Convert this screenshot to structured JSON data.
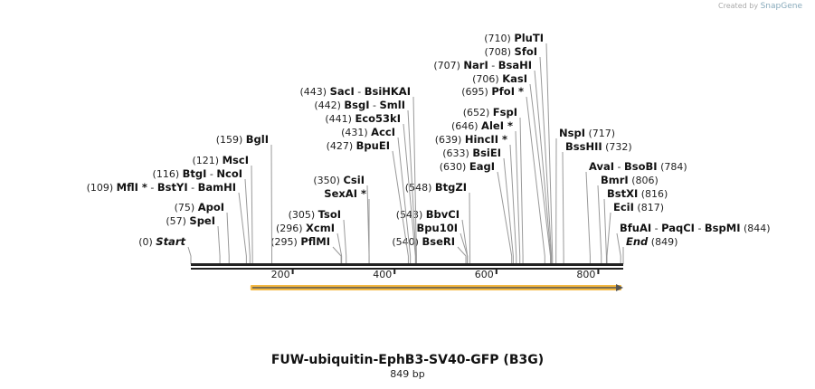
{
  "credit": {
    "prefix": "Created by",
    "brand": "SnapGene"
  },
  "title": "FUW-ubiquitin-EphB3-SV40-GFP (B3G)",
  "length_label": "849 bp",
  "length": 849,
  "ticks": [
    "200",
    "400",
    "600",
    "800"
  ],
  "feature": {
    "start": 117,
    "end": 849,
    "color": "#f5b942"
  },
  "sites": [
    {
      "pos": "(710)",
      "names": [
        "PluTI"
      ],
      "bp": 710,
      "side": "L"
    },
    {
      "pos": "(708)",
      "names": [
        "SfoI"
      ],
      "bp": 708,
      "side": "L"
    },
    {
      "pos": "(707)",
      "names": [
        "NarI",
        "BsaHI"
      ],
      "bp": 707,
      "side": "L"
    },
    {
      "pos": "(706)",
      "names": [
        "KasI"
      ],
      "bp": 706,
      "side": "L"
    },
    {
      "pos": "(695)",
      "names": [
        "PfoI *"
      ],
      "bp": 695,
      "side": "L"
    },
    {
      "pos": "(652)",
      "names": [
        "FspI"
      ],
      "bp": 652,
      "side": "L"
    },
    {
      "pos": "(646)",
      "names": [
        "AleI *"
      ],
      "bp": 646,
      "side": "L"
    },
    {
      "pos": "(639)",
      "names": [
        "HincII *"
      ],
      "bp": 639,
      "side": "L"
    },
    {
      "pos": "(633)",
      "names": [
        "BsiEI"
      ],
      "bp": 633,
      "side": "L"
    },
    {
      "pos": "(630)",
      "names": [
        "EagI"
      ],
      "bp": 630,
      "side": "L"
    },
    {
      "pos": "(548)",
      "names": [
        "BtgZI"
      ],
      "bp": 548,
      "side": "L"
    },
    {
      "pos": "(543)",
      "names": [
        "BbvCI"
      ],
      "bp": 543,
      "side": "L"
    },
    {
      "pos": "",
      "names": [
        "Bpu10I"
      ],
      "bp": 543,
      "side": "L"
    },
    {
      "pos": "(540)",
      "names": [
        "BseRI"
      ],
      "bp": 540,
      "side": "L"
    },
    {
      "pos": "(443)",
      "names": [
        "SacI",
        "BsiHKAI"
      ],
      "bp": 443,
      "side": "L"
    },
    {
      "pos": "(442)",
      "names": [
        "BsgI",
        "SmlI"
      ],
      "bp": 442,
      "side": "L"
    },
    {
      "pos": "(441)",
      "names": [
        "Eco53kI"
      ],
      "bp": 441,
      "side": "L"
    },
    {
      "pos": "(431)",
      "names": [
        "AccI"
      ],
      "bp": 431,
      "side": "L"
    },
    {
      "pos": "(427)",
      "names": [
        "BpuEI"
      ],
      "bp": 427,
      "side": "L"
    },
    {
      "pos": "(350)",
      "names": [
        "CsiI"
      ],
      "bp": 350,
      "side": "L"
    },
    {
      "pos": "",
      "names": [
        "SexAI *"
      ],
      "bp": 350,
      "side": "L"
    },
    {
      "pos": "(305)",
      "names": [
        "TsoI"
      ],
      "bp": 305,
      "side": "L"
    },
    {
      "pos": "(296)",
      "names": [
        "XcmI"
      ],
      "bp": 296,
      "side": "L"
    },
    {
      "pos": "(295)",
      "names": [
        "PflMI"
      ],
      "bp": 295,
      "side": "L"
    },
    {
      "pos": "(159)",
      "names": [
        "BglI"
      ],
      "bp": 159,
      "side": "L"
    },
    {
      "pos": "(121)",
      "names": [
        "MscI"
      ],
      "bp": 121,
      "side": "L"
    },
    {
      "pos": "(116)",
      "names": [
        "BtgI",
        "NcoI"
      ],
      "bp": 116,
      "side": "L"
    },
    {
      "pos": "(109)",
      "names": [
        "MflI *",
        "BstYI",
        "BamHI"
      ],
      "bp": 109,
      "side": "L"
    },
    {
      "pos": "(75)",
      "names": [
        "ApoI"
      ],
      "bp": 75,
      "side": "L"
    },
    {
      "pos": "(57)",
      "names": [
        "SpeI"
      ],
      "bp": 57,
      "side": "L"
    },
    {
      "pos": "(0)",
      "names": [
        "Start"
      ],
      "bp": 0,
      "side": "L",
      "italic": true
    },
    {
      "pos": "(717)",
      "names": [
        "NspI"
      ],
      "bp": 717,
      "side": "R"
    },
    {
      "pos": "(732)",
      "names": [
        "BssHII"
      ],
      "bp": 732,
      "side": "R"
    },
    {
      "pos": "(784)",
      "names": [
        "AvaI",
        "BsoBI"
      ],
      "bp": 784,
      "side": "R"
    },
    {
      "pos": "(806)",
      "names": [
        "BmrI"
      ],
      "bp": 806,
      "side": "R"
    },
    {
      "pos": "(816)",
      "names": [
        "BstXI"
      ],
      "bp": 816,
      "side": "R"
    },
    {
      "pos": "(817)",
      "names": [
        "EciI"
      ],
      "bp": 817,
      "side": "R"
    },
    {
      "pos": "(844)",
      "names": [
        "BfuAI",
        "PaqCI",
        "BspMI"
      ],
      "bp": 844,
      "side": "R"
    },
    {
      "pos": "(849)",
      "names": [
        "End"
      ],
      "bp": 849,
      "side": "R",
      "italic": true
    }
  ]
}
